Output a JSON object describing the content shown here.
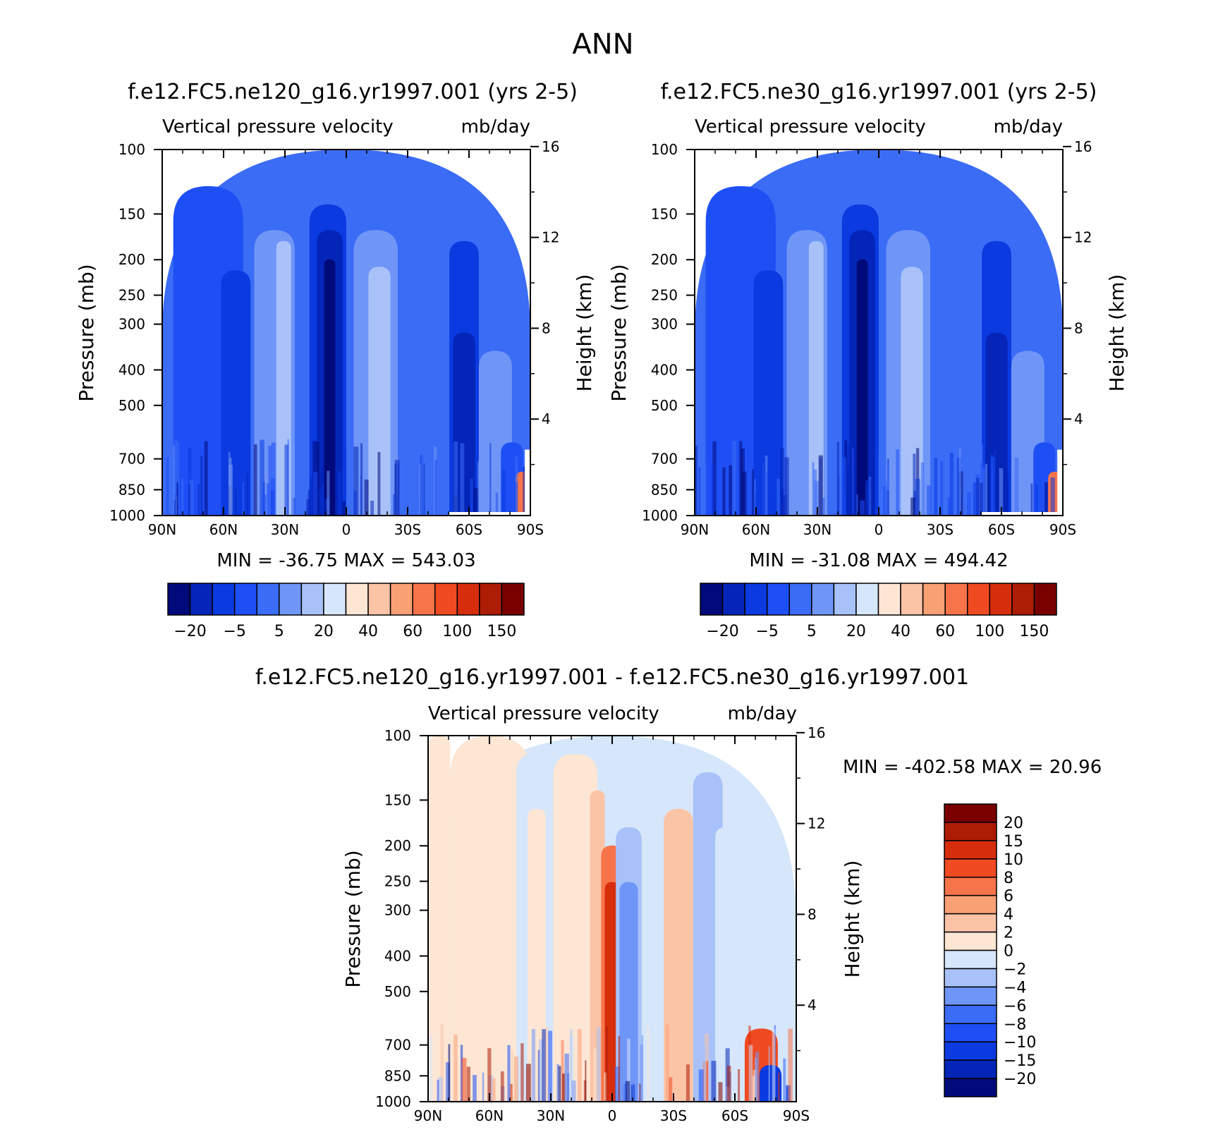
{
  "page_title": "ANN",
  "chart_data": [
    {
      "type": "heatmap",
      "title": "f.e12.FC5.ne120_g16.yr1997.001 (yrs 2-5)",
      "subtitle_left": "Vertical pressure velocity",
      "subtitle_right": "mb/day",
      "ylabel": "Pressure (mb)",
      "ylabel_right": "Height (km)",
      "x_ticks": [
        "90N",
        "60N",
        "30N",
        "0",
        "30S",
        "60S",
        "90S"
      ],
      "y_ticks": [
        100,
        150,
        200,
        250,
        300,
        400,
        500,
        700,
        850,
        1000
      ],
      "y_right_ticks": [
        4,
        8,
        12,
        16
      ],
      "ylim": [
        1000,
        100
      ],
      "log_scale_y": true,
      "stats_text": "MIN = -36.75   MAX = 543.03",
      "min": -36.75,
      "max": 543.03,
      "colorbar": {
        "orientation": "horizontal",
        "levels": [
          -20,
          -15,
          -10,
          -5,
          0,
          5,
          10,
          20,
          30,
          40,
          50,
          60,
          80,
          100,
          150
        ],
        "labels": [
          "-20",
          "-5",
          "5",
          "20",
          "40",
          "60",
          "100",
          "150"
        ],
        "colors": [
          "#000a7a",
          "#0425b8",
          "#0a3ae0",
          "#1e4ff5",
          "#3b6cf5",
          "#6f95f7",
          "#a8c2f9",
          "#d6e6fb",
          "#fde6d4",
          "#fcc4a7",
          "#f9a075",
          "#f7744a",
          "#f04a22",
          "#d62e0c",
          "#ad1c04",
          "#7a0000"
        ]
      }
    },
    {
      "type": "heatmap",
      "title": "f.e12.FC5.ne30_g16.yr1997.001 (yrs 2-5)",
      "subtitle_left": "Vertical pressure velocity",
      "subtitle_right": "mb/day",
      "ylabel": "Pressure (mb)",
      "ylabel_right": "Height (km)",
      "x_ticks": [
        "90N",
        "60N",
        "30N",
        "0",
        "30S",
        "60S",
        "90S"
      ],
      "y_ticks": [
        100,
        150,
        200,
        250,
        300,
        400,
        500,
        700,
        850,
        1000
      ],
      "y_right_ticks": [
        4,
        8,
        12,
        16
      ],
      "ylim": [
        1000,
        100
      ],
      "log_scale_y": true,
      "stats_text": "MIN = -31.08   MAX = 494.42",
      "min": -31.08,
      "max": 494.42,
      "colorbar": {
        "orientation": "horizontal",
        "levels": [
          -20,
          -15,
          -10,
          -5,
          0,
          5,
          10,
          20,
          30,
          40,
          50,
          60,
          80,
          100,
          150
        ],
        "labels": [
          "-20",
          "-5",
          "5",
          "20",
          "40",
          "60",
          "100",
          "150"
        ],
        "colors": [
          "#000a7a",
          "#0425b8",
          "#0a3ae0",
          "#1e4ff5",
          "#3b6cf5",
          "#6f95f7",
          "#a8c2f9",
          "#d6e6fb",
          "#fde6d4",
          "#fcc4a7",
          "#f9a075",
          "#f7744a",
          "#f04a22",
          "#d62e0c",
          "#ad1c04",
          "#7a0000"
        ]
      }
    },
    {
      "type": "heatmap",
      "title": "f.e12.FC5.ne120_g16.yr1997.001 - f.e12.FC5.ne30_g16.yr1997.001",
      "subtitle_left": "Vertical pressure velocity",
      "subtitle_right": "mb/day",
      "ylabel": "Pressure (mb)",
      "ylabel_right": "Height (km)",
      "x_ticks": [
        "90N",
        "60N",
        "30N",
        "0",
        "30S",
        "60S",
        "90S"
      ],
      "y_ticks": [
        100,
        150,
        200,
        250,
        300,
        400,
        500,
        700,
        850,
        1000
      ],
      "y_right_ticks": [
        4,
        8,
        12,
        16
      ],
      "ylim": [
        1000,
        100
      ],
      "log_scale_y": true,
      "stats_text": "MIN = -402.58   MAX =   20.96",
      "min": -402.58,
      "max": 20.96,
      "colorbar": {
        "orientation": "vertical",
        "labels": [
          "20",
          "15",
          "10",
          "8",
          "6",
          "4",
          "2",
          "0",
          "-2",
          "-4",
          "-6",
          "-8",
          "-10",
          "-15",
          "-20"
        ],
        "colors": [
          "#7a0000",
          "#ad1c04",
          "#d62e0c",
          "#f04a22",
          "#f7744a",
          "#f9a075",
          "#fcc4a7",
          "#fde6d4",
          "#d6e6fb",
          "#a8c2f9",
          "#6f95f7",
          "#3b6cf5",
          "#1e4ff5",
          "#0a3ae0",
          "#0425b8",
          "#000a7a"
        ]
      }
    }
  ]
}
